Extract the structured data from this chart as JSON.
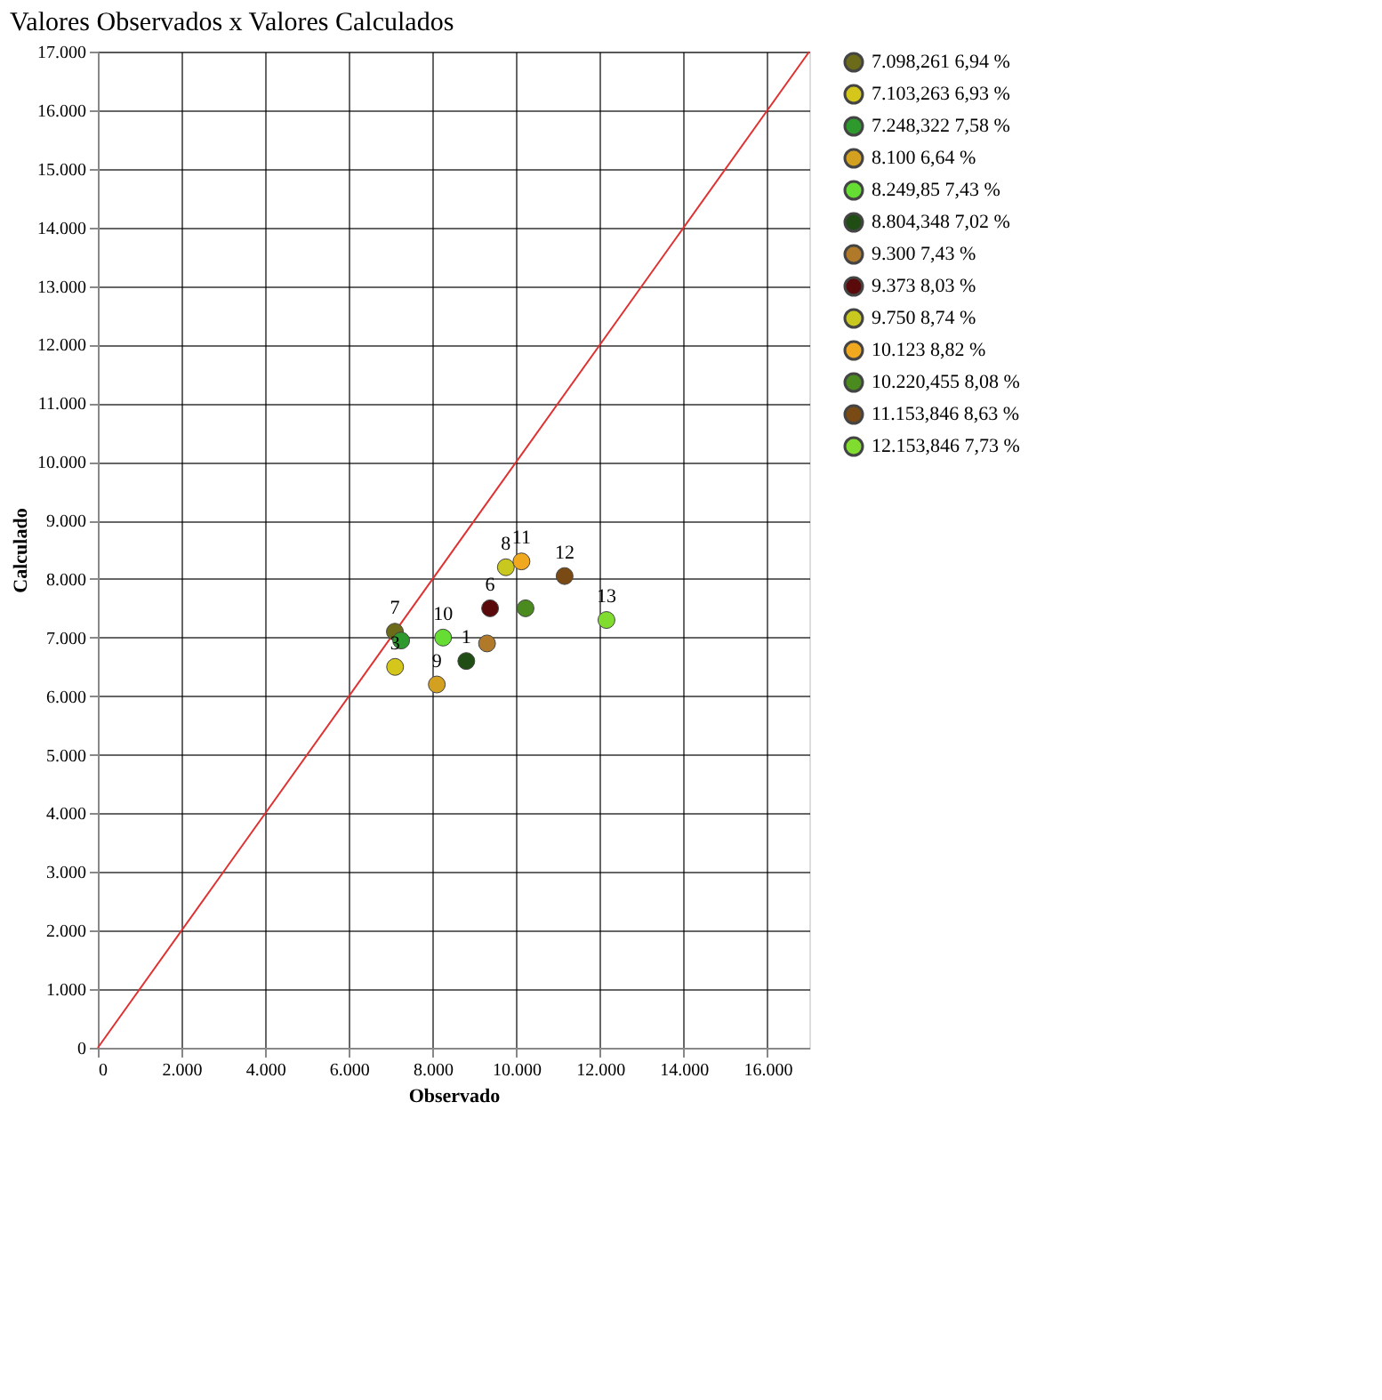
{
  "chart_data": {
    "type": "scatter",
    "title": "Valores Observados x Valores Calculados",
    "xlabel": "Observado",
    "ylabel": "Calculado",
    "xlim": [
      0,
      17000
    ],
    "ylim": [
      0,
      17000
    ],
    "xticks": [
      0,
      {
        "value": 2000,
        "label": "2.000"
      },
      {
        "value": 4000,
        "label": "4.000"
      },
      {
        "value": 6000,
        "label": "6.000"
      },
      {
        "value": 8000,
        "label": "8.000"
      },
      {
        "value": 10000,
        "label": "10.000"
      },
      {
        "value": 12000,
        "label": "12.000"
      },
      {
        "value": 14000,
        "label": "14.000"
      },
      {
        "value": 16000,
        "label": "16.000"
      }
    ],
    "yticks": [
      0,
      {
        "value": 1000,
        "label": "1.000"
      },
      {
        "value": 2000,
        "label": "2.000"
      },
      {
        "value": 3000,
        "label": "3.000"
      },
      {
        "value": 4000,
        "label": "4.000"
      },
      {
        "value": 5000,
        "label": "5.000"
      },
      {
        "value": 6000,
        "label": "6.000"
      },
      {
        "value": 7000,
        "label": "7.000"
      },
      {
        "value": 8000,
        "label": "8.000"
      },
      {
        "value": 9000,
        "label": "9.000"
      },
      {
        "value": 10000,
        "label": "10.000"
      },
      {
        "value": 11000,
        "label": "11.000"
      },
      {
        "value": 12000,
        "label": "12.000"
      },
      {
        "value": 13000,
        "label": "13.000"
      },
      {
        "value": 14000,
        "label": "14.000"
      },
      {
        "value": 15000,
        "label": "15.000"
      },
      {
        "value": 16000,
        "label": "16.000"
      },
      {
        "value": 17000,
        "label": "17.000"
      }
    ],
    "grid": true,
    "legend": "right",
    "marker": "circle",
    "series": [
      {
        "name": "7.098,261 6,94 %",
        "color": "#6b6b1a",
        "x": [
          7098.261
        ],
        "values": [
          7100
        ]
      },
      {
        "name": "7.103,263 6,93 %",
        "color": "#d4c61a",
        "x": [
          7103.263
        ],
        "values": [
          6500
        ]
      },
      {
        "name": "7.248,322 7,58 %",
        "color": "#2e9a2e",
        "x": [
          7248.322
        ],
        "values": [
          6950
        ]
      },
      {
        "name": "8.100 6,64 %",
        "color": "#d4a020",
        "x": [
          8100
        ],
        "values": [
          6200
        ]
      },
      {
        "name": "8.249,85 7,43 %",
        "color": "#66dd33",
        "x": [
          8249.85
        ],
        "values": [
          7000
        ]
      },
      {
        "name": "8.804,348 7,02 %",
        "color": "#1f4d14",
        "x": [
          8804.348
        ],
        "values": [
          6600
        ]
      },
      {
        "name": "9.300 7,43 %",
        "color": "#b07a2a",
        "x": [
          9300
        ],
        "values": [
          6900
        ]
      },
      {
        "name": "9.373 8,03 %",
        "color": "#5a0a0a",
        "x": [
          9373
        ],
        "values": [
          7500
        ]
      },
      {
        "name": "9.750 8,74 %",
        "color": "#c8c81e",
        "x": [
          9750
        ],
        "values": [
          8200
        ]
      },
      {
        "name": "10.123 8,82 %",
        "color": "#f0a81e",
        "x": [
          10123
        ],
        "values": [
          8300
        ]
      },
      {
        "name": "10.220,455 8,08 %",
        "color": "#4a8a1e",
        "x": [
          10220.455
        ],
        "values": [
          7500
        ]
      },
      {
        "name": "11.153,846 8,63 %",
        "color": "#7a4a14",
        "x": [
          11153.846
        ],
        "values": [
          8050
        ]
      },
      {
        "name": "12.153,846 7,73 %",
        "color": "#80dd30",
        "x": [
          12153.846
        ],
        "values": [
          7300
        ]
      },
      {
        "type": "line",
        "marker": "none",
        "color": "#e03030",
        "x": [
          0,
          17000
        ],
        "values": [
          0,
          17000
        ]
      }
    ],
    "annotations": [
      {
        "text": "7",
        "x": 7098.261,
        "y": 7100
      },
      {
        "text": "3",
        "x": 7103.263,
        "y": 6500
      },
      {
        "text": "9",
        "x": 8100,
        "y": 6200
      },
      {
        "text": "10",
        "x": 8249.85,
        "y": 7000
      },
      {
        "text": "1",
        "x": 8804.348,
        "y": 6600
      },
      {
        "text": "6",
        "x": 9373,
        "y": 7500
      },
      {
        "text": "8",
        "x": 9750,
        "y": 8200
      },
      {
        "text": "11",
        "x": 10123,
        "y": 8300
      },
      {
        "text": "12",
        "x": 11153.846,
        "y": 8050
      },
      {
        "text": "13",
        "x": 12153.846,
        "y": 7300
      }
    ]
  }
}
